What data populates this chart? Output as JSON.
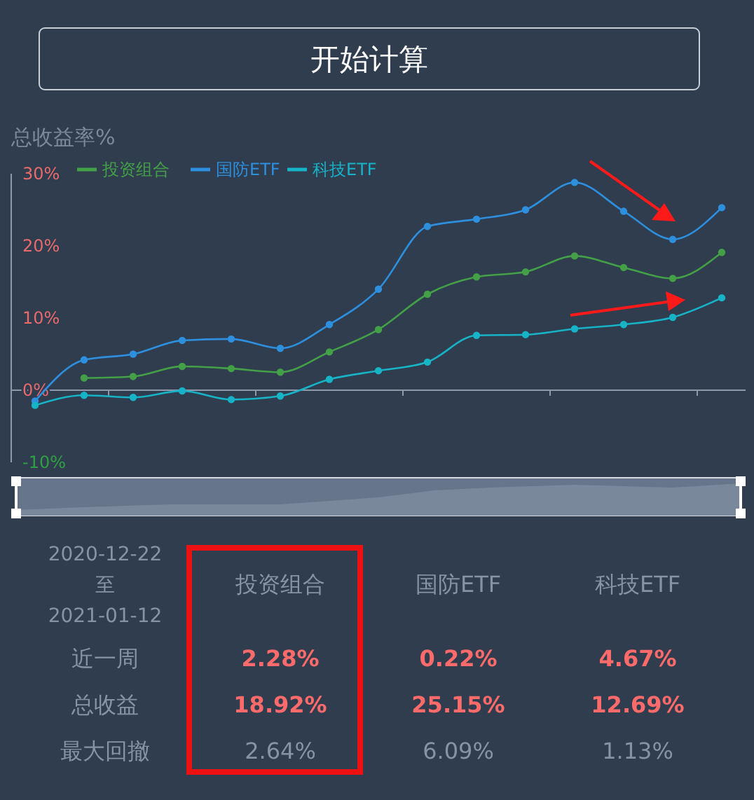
{
  "chart_data": [
    {
      "type": "line",
      "ylabel": "总收益率%",
      "annotations": [
        "开始计算"
      ],
      "categories": [
        null,
        null,
        null,
        null,
        null,
        null,
        null,
        null,
        null,
        null,
        null,
        null,
        null,
        null,
        null
      ],
      "ylim": [
        -10,
        30
      ],
      "yticks": [
        {
          "value": -10,
          "label": "-10%"
        },
        {
          "value": 0,
          "label": "0%"
        },
        {
          "value": 10,
          "label": "10%"
        },
        {
          "value": 20,
          "label": "20%"
        },
        {
          "value": 30,
          "label": "30%"
        }
      ],
      "legend": "top left",
      "marker": "circle",
      "series": [
        {
          "name": "投资组合",
          "color": "#43a047",
          "values": [
            null,
            1.7,
            1.9,
            3.3,
            3.0,
            2.5,
            5.3,
            8.4,
            13.3,
            15.7,
            16.4,
            18.6,
            17.0,
            15.5,
            19.1
          ]
        },
        {
          "name": "国防ETF",
          "color": "#2d8fdd",
          "values": [
            -1.5,
            4.2,
            5.0,
            6.9,
            7.1,
            5.8,
            9.1,
            14.0,
            22.7,
            23.7,
            25.0,
            28.8,
            24.8,
            20.9,
            25.3
          ]
        },
        {
          "name": "科技ETF",
          "color": "#17b3c7",
          "values": [
            -2.1,
            -0.7,
            -1.0,
            -0.1,
            -1.3,
            -0.8,
            1.5,
            2.7,
            3.9,
            7.6,
            7.7,
            8.5,
            9.1,
            10.1,
            12.8
          ]
        }
      ]
    },
    {
      "type": "other",
      "annotations": [
        "2020-12-22",
        "至",
        "2021-01-12"
      ],
      "categories": [
        "投资组合",
        "国防ETF",
        "科技ETF"
      ],
      "y_categories": [
        "近一周",
        "总收益",
        "最大回撤"
      ],
      "cell_labels": [
        [
          "2.28%",
          "0.22%",
          "4.67%"
        ],
        [
          "18.92%",
          "25.15%",
          "12.69%"
        ],
        [
          "2.64%",
          "6.09%",
          "1.13%"
        ]
      ]
    }
  ]
}
